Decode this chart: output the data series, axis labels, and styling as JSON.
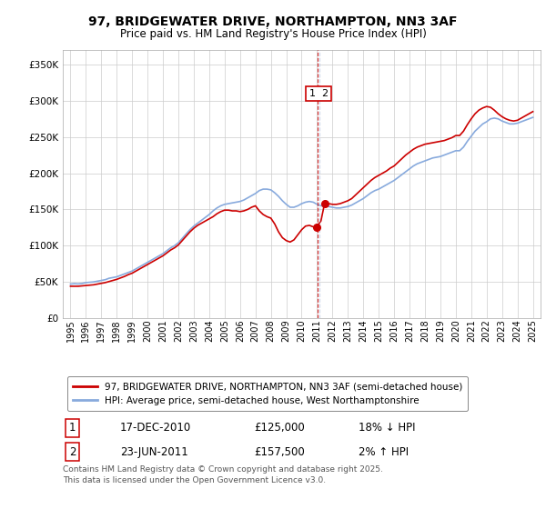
{
  "title": "97, BRIDGEWATER DRIVE, NORTHAMPTON, NN3 3AF",
  "subtitle": "Price paid vs. HM Land Registry's House Price Index (HPI)",
  "title_fontsize": 10.5,
  "subtitle_fontsize": 9,
  "legend_line1": "97, BRIDGEWATER DRIVE, NORTHAMPTON, NN3 3AF (semi-detached house)",
  "legend_line2": "HPI: Average price, semi-detached house, West Northamptonshire",
  "footnote": "Contains HM Land Registry data © Crown copyright and database right 2025.\nThis data is licensed under the Open Government Licence v3.0.",
  "property_color": "#cc0000",
  "hpi_color": "#88aadd",
  "vline_color_red": "#cc0000",
  "vline_color_blue": "#aabbdd",
  "ylim": [
    0,
    370000
  ],
  "yticks": [
    0,
    50000,
    100000,
    150000,
    200000,
    250000,
    300000,
    350000
  ],
  "ytick_labels": [
    "£0",
    "£50K",
    "£100K",
    "£150K",
    "£200K",
    "£250K",
    "£300K",
    "£350K"
  ],
  "xlim_start": 1994.5,
  "xlim_end": 2025.5,
  "purchase1_x": 2010.96,
  "purchase1_y": 125000,
  "purchase2_x": 2011.48,
  "purchase2_y": 157500,
  "vline_x": 2011.1,
  "table_rows": [
    {
      "num": "1",
      "date": "17-DEC-2010",
      "price": "£125,000",
      "hpi": "18% ↓ HPI"
    },
    {
      "num": "2",
      "date": "23-JUN-2011",
      "price": "£157,500",
      "hpi": "2% ↑ HPI"
    }
  ],
  "hpi_data": [
    [
      1995.0,
      47000
    ],
    [
      1995.25,
      47500
    ],
    [
      1995.5,
      47200
    ],
    [
      1995.75,
      47800
    ],
    [
      1996.0,
      49000
    ],
    [
      1996.25,
      49500
    ],
    [
      1996.5,
      50000
    ],
    [
      1996.75,
      51000
    ],
    [
      1997.0,
      52000
    ],
    [
      1997.25,
      53000
    ],
    [
      1997.5,
      55000
    ],
    [
      1997.75,
      56000
    ],
    [
      1998.0,
      57000
    ],
    [
      1998.25,
      59000
    ],
    [
      1998.5,
      61000
    ],
    [
      1998.75,
      63000
    ],
    [
      1999.0,
      65000
    ],
    [
      1999.25,
      68000
    ],
    [
      1999.5,
      71000
    ],
    [
      1999.75,
      74000
    ],
    [
      2000.0,
      77000
    ],
    [
      2000.25,
      80000
    ],
    [
      2000.5,
      83000
    ],
    [
      2000.75,
      86000
    ],
    [
      2001.0,
      89000
    ],
    [
      2001.25,
      93000
    ],
    [
      2001.5,
      97000
    ],
    [
      2001.75,
      100000
    ],
    [
      2002.0,
      104000
    ],
    [
      2002.25,
      110000
    ],
    [
      2002.5,
      116000
    ],
    [
      2002.75,
      122000
    ],
    [
      2003.0,
      127000
    ],
    [
      2003.25,
      131000
    ],
    [
      2003.5,
      135000
    ],
    [
      2003.75,
      139000
    ],
    [
      2004.0,
      143000
    ],
    [
      2004.25,
      148000
    ],
    [
      2004.5,
      152000
    ],
    [
      2004.75,
      155000
    ],
    [
      2005.0,
      157000
    ],
    [
      2005.25,
      158000
    ],
    [
      2005.5,
      159000
    ],
    [
      2005.75,
      160000
    ],
    [
      2006.0,
      161000
    ],
    [
      2006.25,
      163000
    ],
    [
      2006.5,
      166000
    ],
    [
      2006.75,
      169000
    ],
    [
      2007.0,
      172000
    ],
    [
      2007.25,
      176000
    ],
    [
      2007.5,
      178000
    ],
    [
      2007.75,
      178000
    ],
    [
      2008.0,
      177000
    ],
    [
      2008.25,
      173000
    ],
    [
      2008.5,
      168000
    ],
    [
      2008.75,
      162000
    ],
    [
      2009.0,
      157000
    ],
    [
      2009.25,
      153000
    ],
    [
      2009.5,
      153000
    ],
    [
      2009.75,
      155000
    ],
    [
      2010.0,
      158000
    ],
    [
      2010.25,
      160000
    ],
    [
      2010.5,
      161000
    ],
    [
      2010.75,
      160000
    ],
    [
      2011.0,
      157000
    ],
    [
      2011.25,
      155000
    ],
    [
      2011.5,
      155000
    ],
    [
      2011.75,
      154000
    ],
    [
      2012.0,
      153000
    ],
    [
      2012.25,
      152000
    ],
    [
      2012.5,
      152000
    ],
    [
      2012.75,
      153000
    ],
    [
      2013.0,
      154000
    ],
    [
      2013.25,
      156000
    ],
    [
      2013.5,
      159000
    ],
    [
      2013.75,
      162000
    ],
    [
      2014.0,
      165000
    ],
    [
      2014.25,
      169000
    ],
    [
      2014.5,
      173000
    ],
    [
      2014.75,
      176000
    ],
    [
      2015.0,
      178000
    ],
    [
      2015.25,
      181000
    ],
    [
      2015.5,
      184000
    ],
    [
      2015.75,
      187000
    ],
    [
      2016.0,
      190000
    ],
    [
      2016.25,
      194000
    ],
    [
      2016.5,
      198000
    ],
    [
      2016.75,
      202000
    ],
    [
      2017.0,
      206000
    ],
    [
      2017.25,
      210000
    ],
    [
      2017.5,
      213000
    ],
    [
      2017.75,
      215000
    ],
    [
      2018.0,
      217000
    ],
    [
      2018.25,
      219000
    ],
    [
      2018.5,
      221000
    ],
    [
      2018.75,
      222000
    ],
    [
      2019.0,
      223000
    ],
    [
      2019.25,
      225000
    ],
    [
      2019.5,
      227000
    ],
    [
      2019.75,
      229000
    ],
    [
      2020.0,
      231000
    ],
    [
      2020.25,
      231000
    ],
    [
      2020.5,
      236000
    ],
    [
      2020.75,
      244000
    ],
    [
      2021.0,
      251000
    ],
    [
      2021.25,
      258000
    ],
    [
      2021.5,
      263000
    ],
    [
      2021.75,
      268000
    ],
    [
      2022.0,
      271000
    ],
    [
      2022.25,
      275000
    ],
    [
      2022.5,
      276000
    ],
    [
      2022.75,
      275000
    ],
    [
      2023.0,
      272000
    ],
    [
      2023.25,
      270000
    ],
    [
      2023.5,
      268000
    ],
    [
      2023.75,
      268000
    ],
    [
      2024.0,
      269000
    ],
    [
      2024.25,
      271000
    ],
    [
      2024.5,
      273000
    ],
    [
      2024.75,
      275000
    ],
    [
      2025.0,
      277000
    ]
  ],
  "property_data": [
    [
      1995.0,
      44000
    ],
    [
      1995.25,
      44000
    ],
    [
      1995.5,
      44000
    ],
    [
      1995.75,
      44500
    ],
    [
      1996.0,
      45000
    ],
    [
      1996.25,
      45500
    ],
    [
      1996.5,
      46000
    ],
    [
      1996.75,
      47000
    ],
    [
      1997.0,
      48000
    ],
    [
      1997.25,
      49000
    ],
    [
      1997.5,
      50500
    ],
    [
      1997.75,
      52000
    ],
    [
      1998.0,
      53500
    ],
    [
      1998.25,
      55500
    ],
    [
      1998.5,
      57500
    ],
    [
      1998.75,
      60000
    ],
    [
      1999.0,
      62000
    ],
    [
      1999.25,
      65000
    ],
    [
      1999.5,
      68000
    ],
    [
      1999.75,
      71000
    ],
    [
      2000.0,
      74000
    ],
    [
      2000.25,
      77000
    ],
    [
      2000.5,
      80000
    ],
    [
      2000.75,
      83000
    ],
    [
      2001.0,
      86000
    ],
    [
      2001.25,
      90000
    ],
    [
      2001.5,
      94000
    ],
    [
      2001.75,
      97000
    ],
    [
      2002.0,
      101000
    ],
    [
      2002.25,
      107000
    ],
    [
      2002.5,
      113000
    ],
    [
      2002.75,
      119000
    ],
    [
      2003.0,
      124000
    ],
    [
      2003.25,
      128000
    ],
    [
      2003.5,
      131000
    ],
    [
      2003.75,
      134000
    ],
    [
      2004.0,
      137000
    ],
    [
      2004.25,
      140000
    ],
    [
      2004.5,
      144000
    ],
    [
      2004.75,
      147000
    ],
    [
      2005.0,
      149000
    ],
    [
      2005.25,
      149000
    ],
    [
      2005.5,
      148000
    ],
    [
      2005.75,
      148000
    ],
    [
      2006.0,
      147000
    ],
    [
      2006.25,
      148000
    ],
    [
      2006.5,
      150000
    ],
    [
      2006.75,
      153000
    ],
    [
      2007.0,
      155000
    ],
    [
      2007.25,
      148000
    ],
    [
      2007.5,
      143000
    ],
    [
      2007.75,
      140000
    ],
    [
      2008.0,
      138000
    ],
    [
      2008.25,
      130000
    ],
    [
      2008.5,
      119000
    ],
    [
      2008.75,
      111000
    ],
    [
      2009.0,
      107000
    ],
    [
      2009.25,
      105000
    ],
    [
      2009.5,
      108000
    ],
    [
      2009.75,
      115000
    ],
    [
      2010.0,
      122000
    ],
    [
      2010.25,
      127000
    ],
    [
      2010.5,
      128000
    ],
    [
      2010.75,
      126000
    ],
    [
      2010.96,
      125000
    ],
    [
      2011.0,
      127000
    ],
    [
      2011.25,
      134000
    ],
    [
      2011.48,
      157500
    ],
    [
      2011.5,
      158000
    ],
    [
      2011.75,
      158000
    ],
    [
      2012.0,
      157000
    ],
    [
      2012.25,
      157000
    ],
    [
      2012.5,
      158000
    ],
    [
      2012.75,
      160000
    ],
    [
      2013.0,
      162000
    ],
    [
      2013.25,
      165000
    ],
    [
      2013.5,
      170000
    ],
    [
      2013.75,
      175000
    ],
    [
      2014.0,
      180000
    ],
    [
      2014.25,
      185000
    ],
    [
      2014.5,
      190000
    ],
    [
      2014.75,
      194000
    ],
    [
      2015.0,
      197000
    ],
    [
      2015.25,
      200000
    ],
    [
      2015.5,
      203000
    ],
    [
      2015.75,
      207000
    ],
    [
      2016.0,
      210000
    ],
    [
      2016.25,
      215000
    ],
    [
      2016.5,
      220000
    ],
    [
      2016.75,
      225000
    ],
    [
      2017.0,
      229000
    ],
    [
      2017.25,
      233000
    ],
    [
      2017.5,
      236000
    ],
    [
      2017.75,
      238000
    ],
    [
      2018.0,
      240000
    ],
    [
      2018.25,
      241000
    ],
    [
      2018.5,
      242000
    ],
    [
      2018.75,
      243000
    ],
    [
      2019.0,
      244000
    ],
    [
      2019.25,
      245000
    ],
    [
      2019.5,
      247000
    ],
    [
      2019.75,
      249000
    ],
    [
      2020.0,
      252000
    ],
    [
      2020.25,
      252000
    ],
    [
      2020.5,
      258000
    ],
    [
      2020.75,
      267000
    ],
    [
      2021.0,
      275000
    ],
    [
      2021.25,
      282000
    ],
    [
      2021.5,
      287000
    ],
    [
      2021.75,
      290000
    ],
    [
      2022.0,
      292000
    ],
    [
      2022.25,
      291000
    ],
    [
      2022.5,
      287000
    ],
    [
      2022.75,
      282000
    ],
    [
      2023.0,
      278000
    ],
    [
      2023.25,
      275000
    ],
    [
      2023.5,
      273000
    ],
    [
      2023.75,
      272000
    ],
    [
      2024.0,
      273000
    ],
    [
      2024.25,
      276000
    ],
    [
      2024.5,
      279000
    ],
    [
      2024.75,
      282000
    ],
    [
      2025.0,
      285000
    ]
  ]
}
